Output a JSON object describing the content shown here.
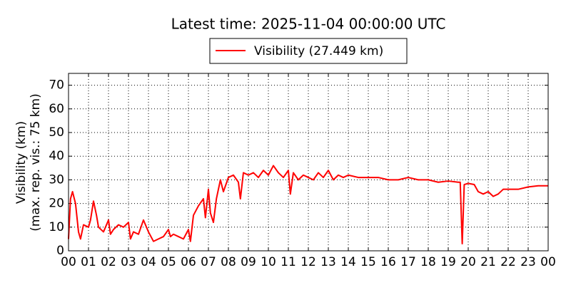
{
  "chart_data": {
    "type": "line",
    "title": "Latest time: 2025-11-04 00:00:00 UTC",
    "ylabel": [
      "Visibility (km)",
      "(max. rep. vis.: 75 km)"
    ],
    "x": [
      0,
      0.1,
      0.2,
      0.35,
      0.5,
      0.6,
      0.75,
      1,
      1.1,
      1.25,
      1.4,
      1.5,
      1.75,
      2,
      2.1,
      2.25,
      2.5,
      2.75,
      3,
      3.1,
      3.25,
      3.5,
      3.75,
      4,
      4.25,
      4.5,
      4.75,
      5,
      5.1,
      5.25,
      5.5,
      5.75,
      6,
      6.1,
      6.25,
      6.5,
      6.75,
      6.85,
      7,
      7.1,
      7.25,
      7.4,
      7.6,
      7.75,
      8,
      8.25,
      8.5,
      8.6,
      8.75,
      9,
      9.25,
      9.5,
      9.75,
      10,
      10.25,
      10.5,
      10.75,
      11,
      11.1,
      11.25,
      11.5,
      11.75,
      12,
      12.25,
      12.5,
      12.75,
      13,
      13.25,
      13.5,
      13.75,
      14,
      14.5,
      15,
      15.5,
      16,
      16.5,
      17,
      17.5,
      18,
      18.5,
      19,
      19.5,
      19.6,
      19.7,
      19.8,
      20,
      20.3,
      20.5,
      20.75,
      21,
      21.25,
      21.5,
      21.75,
      22,
      22.5,
      23,
      23.5,
      24
    ],
    "series": [
      {
        "name": "Visibility (27.449 km)",
        "color": "#ff0000",
        "values": [
          5,
          22,
          25,
          20,
          8,
          5,
          11,
          10,
          13,
          21,
          15,
          10,
          8,
          13,
          7,
          9,
          11,
          10,
          12,
          5,
          8,
          7,
          13,
          8,
          4,
          5,
          6,
          9,
          6,
          7,
          6,
          5,
          9,
          4,
          15,
          19,
          22,
          14,
          26,
          16,
          12,
          22,
          30,
          25,
          31,
          32,
          29,
          22,
          33,
          32,
          33,
          31,
          34,
          32,
          36,
          33,
          31,
          34,
          24,
          33,
          30,
          32,
          31,
          30,
          33,
          31,
          34,
          30,
          32,
          31,
          32,
          31,
          31,
          31,
          30,
          30,
          31,
          30,
          30,
          29,
          29.5,
          29,
          29,
          3,
          28,
          28.5,
          28,
          25,
          24,
          25,
          23,
          24,
          26,
          26,
          26,
          27,
          27.5,
          27.5
        ]
      }
    ],
    "xlim": [
      0,
      24
    ],
    "xticks": [
      {
        "value": 0,
        "label": "00"
      },
      {
        "value": 1,
        "label": "01"
      },
      {
        "value": 2,
        "label": "02"
      },
      {
        "value": 3,
        "label": "03"
      },
      {
        "value": 4,
        "label": "04"
      },
      {
        "value": 5,
        "label": "05"
      },
      {
        "value": 6,
        "label": "06"
      },
      {
        "value": 7,
        "label": "07"
      },
      {
        "value": 8,
        "label": "08"
      },
      {
        "value": 9,
        "label": "09"
      },
      {
        "value": 10,
        "label": "10"
      },
      {
        "value": 11,
        "label": "11"
      },
      {
        "value": 12,
        "label": "12"
      },
      {
        "value": 13,
        "label": "13"
      },
      {
        "value": 14,
        "label": "14"
      },
      {
        "value": 15,
        "label": "15"
      },
      {
        "value": 16,
        "label": "16"
      },
      {
        "value": 17,
        "label": "17"
      },
      {
        "value": 18,
        "label": "18"
      },
      {
        "value": 19,
        "label": "19"
      },
      {
        "value": 20,
        "label": "20"
      },
      {
        "value": 21,
        "label": "21"
      },
      {
        "value": 22,
        "label": "22"
      },
      {
        "value": 23,
        "label": "23"
      },
      {
        "value": 24,
        "label": "00"
      }
    ],
    "ylim": [
      0,
      75
    ],
    "yticks": [
      0,
      10,
      20,
      30,
      40,
      50,
      60,
      70
    ],
    "grid": true,
    "legend": "top"
  }
}
